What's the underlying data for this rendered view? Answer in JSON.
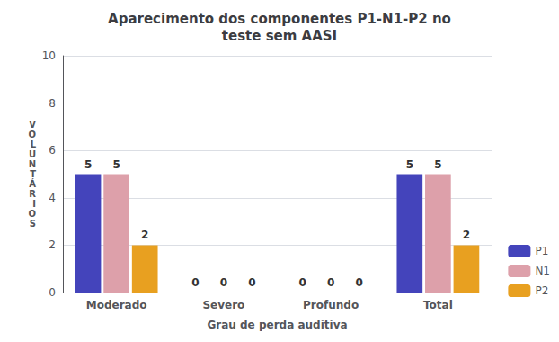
{
  "chart_data": {
    "type": "bar",
    "title": "Aparecimento dos componentes P1-N1-P2 no\nteste sem AASI",
    "xlabel": "Grau de perda auditiva",
    "ylabel": "V\nO\nL\nU\nN\nT\nÁ\nR\nI\nO\nS",
    "categories": [
      "Moderado",
      "Severo",
      "Profundo",
      "Total"
    ],
    "series": [
      {
        "name": "P1",
        "color": "#4444BB",
        "values": [
          5,
          0,
          0,
          5
        ]
      },
      {
        "name": "N1",
        "color": "#DDA0AA",
        "values": [
          5,
          0,
          0,
          5
        ]
      },
      {
        "name": "P2",
        "color": "#E8A020",
        "values": [
          2,
          0,
          0,
          2
        ]
      }
    ],
    "ylim": [
      0,
      10
    ],
    "yticks": [
      0,
      2,
      4,
      6,
      8,
      10
    ],
    "grid": true,
    "legend": "lower right",
    "data_labels": true
  }
}
